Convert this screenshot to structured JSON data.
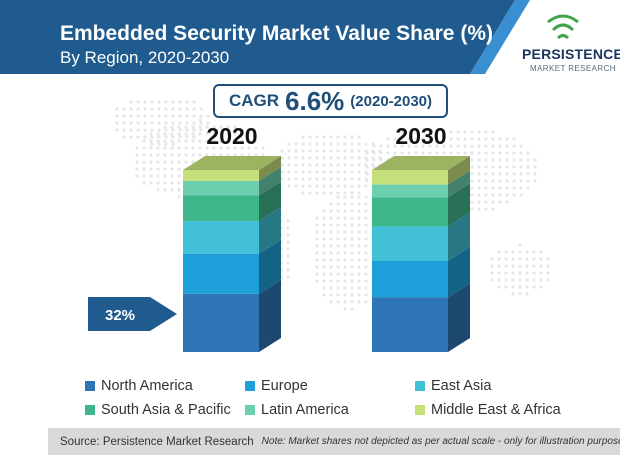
{
  "title": {
    "line1": "Embedded Security Market Value Share (%)",
    "line2": "By Region, 2020-2030"
  },
  "logo": {
    "main": "PERSISTENCE",
    "sub": "MARKET RESEARCH"
  },
  "cagr": {
    "label": "CAGR",
    "value": "6.6%",
    "period": "(2020-2030)"
  },
  "callout": "32%",
  "source": "Source: Persistence Market Research",
  "note": "Note: Market shares not depicted as per actual scale - only for illustration purposes",
  "chart_data": {
    "type": "bar",
    "stacked": true,
    "categories": [
      "2020",
      "2030"
    ],
    "series": [
      {
        "name": "North America",
        "color": "#2e75b6",
        "values": [
          32,
          30
        ]
      },
      {
        "name": "Europe",
        "color": "#1f9fd9",
        "values": [
          22,
          20
        ]
      },
      {
        "name": "East Asia",
        "color": "#41c0d6",
        "values": [
          18,
          19
        ]
      },
      {
        "name": "South Asia & Pacific",
        "color": "#3fb58a",
        "values": [
          14,
          16
        ]
      },
      {
        "name": "Latin America",
        "color": "#6ccfb0",
        "values": [
          8,
          7
        ]
      },
      {
        "name": "Middle East & Africa",
        "color": "#c5e07a",
        "values": [
          6,
          8
        ]
      }
    ],
    "annotation": "32%",
    "legend_position": "bottom",
    "grid": false
  }
}
